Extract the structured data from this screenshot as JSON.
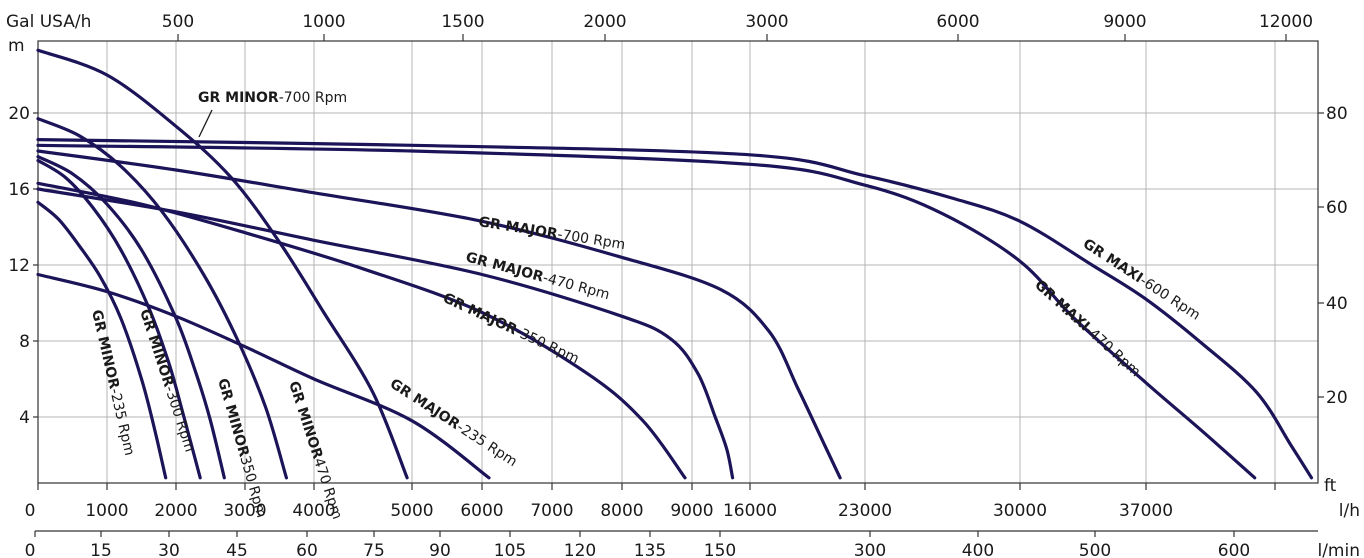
{
  "chart_data": {
    "type": "line",
    "title": "",
    "curve_color": "#1c1458",
    "grid": true,
    "axes": {
      "top": {
        "unit": "Gal USA/h",
        "ticks": [
          "500",
          "1000",
          "1500",
          "2000",
          "3000",
          "6000",
          "9000",
          "12000"
        ]
      },
      "bottom_lh": {
        "unit": "l/h",
        "ticks": [
          "0",
          "1000",
          "2000",
          "3000",
          "4000",
          "5000",
          "6000",
          "7000",
          "8000",
          "9000",
          "16000",
          "23000",
          "30000",
          "37000"
        ]
      },
      "bottom_lmin": {
        "unit": "l/min",
        "ticks": [
          "0",
          "15",
          "30",
          "45",
          "60",
          "75",
          "90",
          "105",
          "120",
          "135",
          "150",
          "300",
          "400",
          "500",
          "600"
        ]
      },
      "left": {
        "unit": "m",
        "ticks": [
          "4",
          "8",
          "12",
          "16",
          "20"
        ],
        "ylim": [
          0,
          24
        ]
      },
      "right": {
        "unit": "ft",
        "ticks": [
          "20",
          "40",
          "60",
          "80"
        ]
      }
    },
    "series": [
      {
        "model": "GR MINOR",
        "speed": "-235 Rpm",
        "points": [
          [
            0,
            15.3
          ],
          [
            300,
            14.4
          ],
          [
            600,
            13.0
          ],
          [
            900,
            11.4
          ],
          [
            1200,
            9.2
          ],
          [
            1500,
            6.0
          ],
          [
            1700,
            3.2
          ],
          [
            1850,
            0.8
          ]
        ]
      },
      {
        "model": "GR MINOR",
        "speed": "-300 Rpm",
        "points": [
          [
            0,
            17.5
          ],
          [
            400,
            16.6
          ],
          [
            800,
            15.0
          ],
          [
            1200,
            12.8
          ],
          [
            1600,
            9.8
          ],
          [
            1900,
            6.8
          ],
          [
            2100,
            4.2
          ],
          [
            2350,
            0.8
          ]
        ]
      },
      {
        "model": "GR MINOR",
        "speed": "350 Rpm",
        "points": [
          [
            0,
            17.7
          ],
          [
            500,
            16.8
          ],
          [
            1000,
            15.2
          ],
          [
            1500,
            12.8
          ],
          [
            2000,
            9.2
          ],
          [
            2300,
            6.2
          ],
          [
            2500,
            3.8
          ],
          [
            2700,
            0.8
          ]
        ]
      },
      {
        "model": "GR MINOR",
        "speed": "470 Rpm",
        "points": [
          [
            0,
            19.7
          ],
          [
            600,
            18.8
          ],
          [
            1200,
            17.2
          ],
          [
            1800,
            14.8
          ],
          [
            2400,
            11.5
          ],
          [
            2900,
            8.0
          ],
          [
            3300,
            4.5
          ],
          [
            3600,
            0.8
          ]
        ]
      },
      {
        "model": "GR MINOR",
        "speed": "-700 Rpm",
        "points": [
          [
            0,
            23.3
          ],
          [
            1000,
            22.0
          ],
          [
            2000,
            19.3
          ],
          [
            2800,
            16.6
          ],
          [
            3500,
            13.2
          ],
          [
            4100,
            9.5
          ],
          [
            4600,
            5.3
          ],
          [
            4950,
            0.8
          ]
        ]
      },
      {
        "model": "GR MAJOR",
        "speed": "-235 Rpm",
        "points": [
          [
            0,
            11.5
          ],
          [
            1000,
            10.6
          ],
          [
            2000,
            9.3
          ],
          [
            3000,
            7.7
          ],
          [
            4000,
            6.0
          ],
          [
            5000,
            3.8
          ],
          [
            6100,
            0.8
          ]
        ]
      },
      {
        "model": "GR MAJOR",
        "speed": "-350 Rpm",
        "points": [
          [
            0,
            16.3
          ],
          [
            1500,
            15.2
          ],
          [
            3000,
            13.7
          ],
          [
            4500,
            11.8
          ],
          [
            6000,
            9.5
          ],
          [
            7500,
            6.3
          ],
          [
            8300,
            3.8
          ],
          [
            8900,
            0.8
          ]
        ]
      },
      {
        "model": "GR MAJOR",
        "speed": "-470 Rpm",
        "points": [
          [
            0,
            16.0
          ],
          [
            2000,
            14.8
          ],
          [
            4000,
            13.3
          ],
          [
            6000,
            11.5
          ],
          [
            8000,
            9.3
          ],
          [
            8700,
            8.1
          ],
          [
            9100,
            6.3
          ],
          [
            9400,
            4.0
          ],
          [
            9600,
            2.3
          ],
          [
            9700,
            0.8
          ]
        ]
      },
      {
        "model": "GR MAJOR",
        "speed": "-700 Rpm",
        "points": [
          [
            0,
            18.0
          ],
          [
            2000,
            17.0
          ],
          [
            4000,
            15.8
          ],
          [
            6000,
            14.3
          ],
          [
            8000,
            12.4
          ],
          [
            9500,
            10.7
          ],
          [
            11000,
            8.5
          ],
          [
            12500,
            5.5
          ],
          [
            13900,
            2.5
          ],
          [
            14700,
            0.8
          ]
        ]
      },
      {
        "model": "GR MAXI",
        "speed": "-470 Rpm",
        "points": [
          [
            0,
            18.3
          ],
          [
            5000,
            18.0
          ],
          [
            10000,
            17.3
          ],
          [
            16000,
            16.2
          ],
          [
            19500,
            14.7
          ],
          [
            23000,
            12.2
          ],
          [
            26000,
            9.2
          ],
          [
            30000,
            5.8
          ],
          [
            33000,
            3.3
          ],
          [
            35900,
            0.8
          ]
        ]
      },
      {
        "model": "GR MAXI",
        "speed": "-600 Rpm",
        "points": [
          [
            0,
            18.6
          ],
          [
            5000,
            18.3
          ],
          [
            10000,
            17.8
          ],
          [
            16000,
            16.7
          ],
          [
            20000,
            15.5
          ],
          [
            23000,
            14.3
          ],
          [
            27000,
            12.0
          ],
          [
            30000,
            10.2
          ],
          [
            33000,
            7.9
          ],
          [
            36000,
            5.3
          ],
          [
            38500,
            2.5
          ],
          [
            40400,
            0.8
          ]
        ]
      }
    ]
  }
}
